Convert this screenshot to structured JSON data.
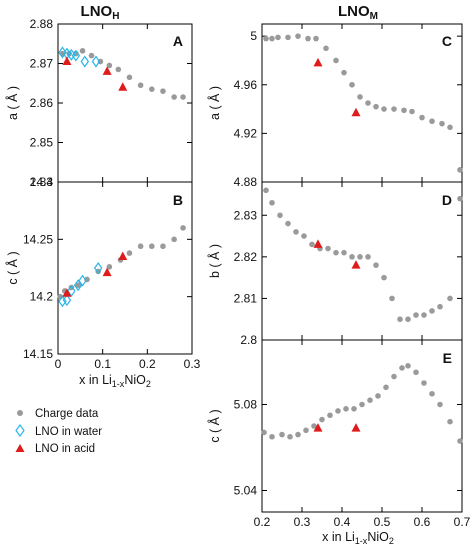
{
  "colors": {
    "charge": "#9a9a9a",
    "water": "#29b6e8",
    "acid": "#e01b1b",
    "frame": "#000000"
  },
  "headers": {
    "left": "LNO",
    "left_sub": "H",
    "right": "LNO",
    "right_sub": "M"
  },
  "legend": {
    "charge": "Charge data",
    "water": "LNO in water",
    "acid": "LNO in acid"
  },
  "xlabels": {
    "left": {
      "pre": "x in Li",
      "sub": "1-x",
      "post": "NiO",
      "sub2": "2"
    },
    "right": {
      "pre": "x in Li",
      "sub": "1-x",
      "post": "NiO",
      "sub2": "2"
    }
  },
  "chart_data": [
    {
      "id": "A",
      "type": "scatter",
      "panel_label": "A",
      "ylabel": "a ( Å )",
      "xlim": [
        0,
        0.3
      ],
      "ylim": [
        2.84,
        2.88
      ],
      "yticks": [
        "2.84",
        "2.85",
        "2.86",
        "2.87",
        "2.88"
      ],
      "xticks": [],
      "series": [
        {
          "name": "Charge data",
          "marker": "circle",
          "x": [
            0.01,
            0.025,
            0.04,
            0.055,
            0.075,
            0.095,
            0.115,
            0.135,
            0.16,
            0.185,
            0.21,
            0.235,
            0.26,
            0.28
          ],
          "y": [
            2.8725,
            2.8725,
            2.8725,
            2.8732,
            2.872,
            2.8705,
            2.8695,
            2.8685,
            2.8665,
            2.8645,
            2.8635,
            2.863,
            2.8615,
            2.8615
          ]
        },
        {
          "name": "LNO in water",
          "marker": "diamond",
          "x": [
            0.01,
            0.02,
            0.03,
            0.04,
            0.06,
            0.085
          ],
          "y": [
            2.8728,
            2.8725,
            2.8722,
            2.872,
            2.8705,
            2.8705
          ]
        },
        {
          "name": "LNO in acid",
          "marker": "triangle",
          "x": [
            0.02,
            0.11,
            0.145
          ],
          "y": [
            2.8705,
            2.868,
            2.864
          ]
        }
      ]
    },
    {
      "id": "B",
      "type": "scatter",
      "panel_label": "B",
      "ylabel": "c ( Å )",
      "xlim": [
        0,
        0.3
      ],
      "ylim": [
        14.15,
        14.3
      ],
      "yticks": [
        "14.15",
        "14.2",
        "14.25",
        "14.3"
      ],
      "xticks": [
        "0",
        "0.1",
        "0.2",
        "0.3"
      ],
      "series": [
        {
          "name": "Charge data",
          "marker": "circle",
          "x": [
            0.005,
            0.015,
            0.03,
            0.045,
            0.065,
            0.09,
            0.115,
            0.14,
            0.16,
            0.185,
            0.21,
            0.235,
            0.26,
            0.28
          ],
          "y": [
            14.2,
            14.205,
            14.208,
            14.21,
            14.215,
            14.222,
            14.226,
            14.232,
            14.238,
            14.244,
            14.244,
            14.244,
            14.25,
            14.26
          ]
        },
        {
          "name": "LNO in water",
          "marker": "diamond",
          "x": [
            0.01,
            0.02,
            0.03,
            0.045,
            0.055,
            0.09
          ],
          "y": [
            14.196,
            14.197,
            14.205,
            14.21,
            14.214,
            14.225
          ]
        },
        {
          "name": "LNO in acid",
          "marker": "triangle",
          "x": [
            0.02,
            0.11,
            0.145
          ],
          "y": [
            14.203,
            14.221,
            14.235
          ]
        }
      ]
    },
    {
      "id": "C",
      "type": "scatter",
      "panel_label": "C",
      "ylabel": "a ( Å )",
      "xlim": [
        0.2,
        0.7
      ],
      "ylim": [
        4.88,
        5.01
      ],
      "yticks": [
        "4.88",
        "4.92",
        "4.96",
        "5"
      ],
      "xticks": [],
      "series": [
        {
          "name": "Charge data",
          "marker": "circle",
          "x": [
            0.21,
            0.225,
            0.24,
            0.265,
            0.29,
            0.315,
            0.335,
            0.36,
            0.385,
            0.405,
            0.425,
            0.445,
            0.465,
            0.485,
            0.505,
            0.53,
            0.555,
            0.575,
            0.6,
            0.625,
            0.65,
            0.67,
            0.695
          ],
          "y": [
            4.998,
            4.998,
            4.999,
            4.999,
            5.0,
            4.998,
            4.998,
            4.99,
            4.98,
            4.97,
            4.96,
            4.95,
            4.945,
            4.942,
            4.94,
            4.94,
            4.939,
            4.938,
            4.933,
            4.93,
            4.928,
            4.925,
            4.89
          ]
        },
        {
          "name": "LNO in acid",
          "marker": "triangle",
          "x": [
            0.34,
            0.435
          ],
          "y": [
            4.978,
            4.937
          ]
        }
      ]
    },
    {
      "id": "D",
      "type": "scatter",
      "panel_label": "D",
      "ylabel": "b ( Å )",
      "xlim": [
        0.2,
        0.7
      ],
      "ylim": [
        2.8,
        2.838
      ],
      "yticks": [
        "2.8",
        "2.81",
        "2.82",
        "2.83"
      ],
      "xticks": [],
      "series": [
        {
          "name": "Charge data",
          "marker": "circle",
          "x": [
            0.21,
            0.225,
            0.245,
            0.265,
            0.285,
            0.305,
            0.325,
            0.345,
            0.365,
            0.385,
            0.405,
            0.425,
            0.445,
            0.465,
            0.485,
            0.505,
            0.525,
            0.545,
            0.565,
            0.585,
            0.605,
            0.625,
            0.645,
            0.67,
            0.695
          ],
          "y": [
            2.836,
            2.833,
            2.83,
            2.828,
            2.826,
            2.825,
            2.823,
            2.822,
            2.822,
            2.821,
            2.821,
            2.82,
            2.82,
            2.82,
            2.818,
            2.815,
            2.81,
            2.805,
            2.805,
            2.806,
            2.806,
            2.807,
            2.808,
            2.81,
            2.834
          ]
        },
        {
          "name": "LNO in acid",
          "marker": "triangle",
          "x": [
            0.34,
            0.435
          ],
          "y": [
            2.823,
            2.818
          ]
        }
      ]
    },
    {
      "id": "E",
      "type": "scatter",
      "panel_label": "E",
      "ylabel": "c ( Å )",
      "xlim": [
        0.2,
        0.7
      ],
      "ylim": [
        5.03,
        5.11
      ],
      "yticks": [
        "5.04",
        "5.08"
      ],
      "xticks": [
        "0.2",
        "0.3",
        "0.4",
        "0.5",
        "0.6",
        "0.7"
      ],
      "series": [
        {
          "name": "Charge data",
          "marker": "circle",
          "x": [
            0.205,
            0.225,
            0.25,
            0.27,
            0.29,
            0.31,
            0.33,
            0.35,
            0.37,
            0.39,
            0.41,
            0.43,
            0.45,
            0.47,
            0.49,
            0.51,
            0.53,
            0.55,
            0.565,
            0.585,
            0.605,
            0.625,
            0.645,
            0.67,
            0.695
          ],
          "y": [
            5.067,
            5.065,
            5.066,
            5.065,
            5.066,
            5.068,
            5.07,
            5.073,
            5.075,
            5.077,
            5.078,
            5.078,
            5.08,
            5.082,
            5.084,
            5.088,
            5.093,
            5.097,
            5.098,
            5.095,
            5.09,
            5.085,
            5.08,
            5.072,
            5.063
          ]
        },
        {
          "name": "LNO in acid",
          "marker": "triangle",
          "x": [
            0.34,
            0.435
          ],
          "y": [
            5.069,
            5.069
          ]
        }
      ]
    }
  ]
}
